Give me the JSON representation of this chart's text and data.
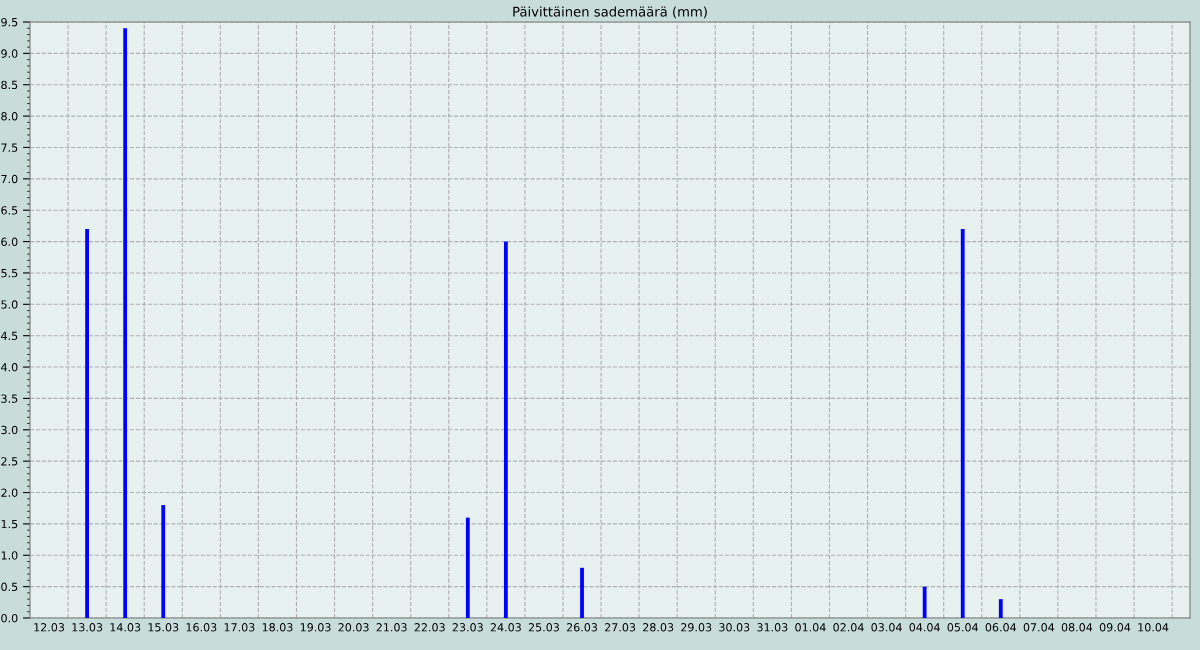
{
  "chart_data": {
    "type": "bar",
    "title": "Päivittäinen sademäärä (mm)",
    "categories": [
      "12.03",
      "13.03",
      "14.03",
      "15.03",
      "16.03",
      "17.03",
      "18.03",
      "19.03",
      "20.03",
      "21.03",
      "22.03",
      "23.03",
      "24.03",
      "25.03",
      "26.03",
      "27.03",
      "28.03",
      "29.03",
      "30.03",
      "31.03",
      "01.04",
      "02.04",
      "03.04",
      "04.04",
      "05.04",
      "06.04",
      "07.04",
      "08.04",
      "09.04",
      "10.04"
    ],
    "values": [
      0,
      6.2,
      9.4,
      1.8,
      0,
      0,
      0,
      0,
      0,
      0,
      0,
      1.6,
      6.0,
      0,
      0.8,
      0,
      0,
      0,
      0,
      0,
      0,
      0,
      0,
      0.5,
      6.2,
      0.3,
      0,
      0,
      0,
      0
    ],
    "color": "#0000ff",
    "ylim": [
      0,
      9.5
    ],
    "yticks": [
      {
        "value": 0,
        "label": "0.0"
      },
      {
        "value": 0.5,
        "label": "0.5"
      },
      {
        "value": 1,
        "label": "1.0"
      },
      {
        "value": 1.5,
        "label": "1.5"
      },
      {
        "value": 2,
        "label": "2.0"
      },
      {
        "value": 2.5,
        "label": "2.5"
      },
      {
        "value": 3,
        "label": "3.0"
      },
      {
        "value": 3.5,
        "label": "3.5"
      },
      {
        "value": 4,
        "label": "4.0"
      },
      {
        "value": 4.5,
        "label": "4.5"
      },
      {
        "value": 5,
        "label": "5.0"
      },
      {
        "value": 5.5,
        "label": "5.5"
      },
      {
        "value": 6,
        "label": "6.0"
      },
      {
        "value": 6.5,
        "label": "6.5"
      },
      {
        "value": 7,
        "label": "7.0"
      },
      {
        "value": 7.5,
        "label": "7.5"
      },
      {
        "value": 8,
        "label": "8.0"
      },
      {
        "value": 8.5,
        "label": "8.5"
      },
      {
        "value": 9,
        "label": "9.0"
      },
      {
        "value": 9.5,
        "label": "9.5"
      }
    ],
    "grid": true
  }
}
